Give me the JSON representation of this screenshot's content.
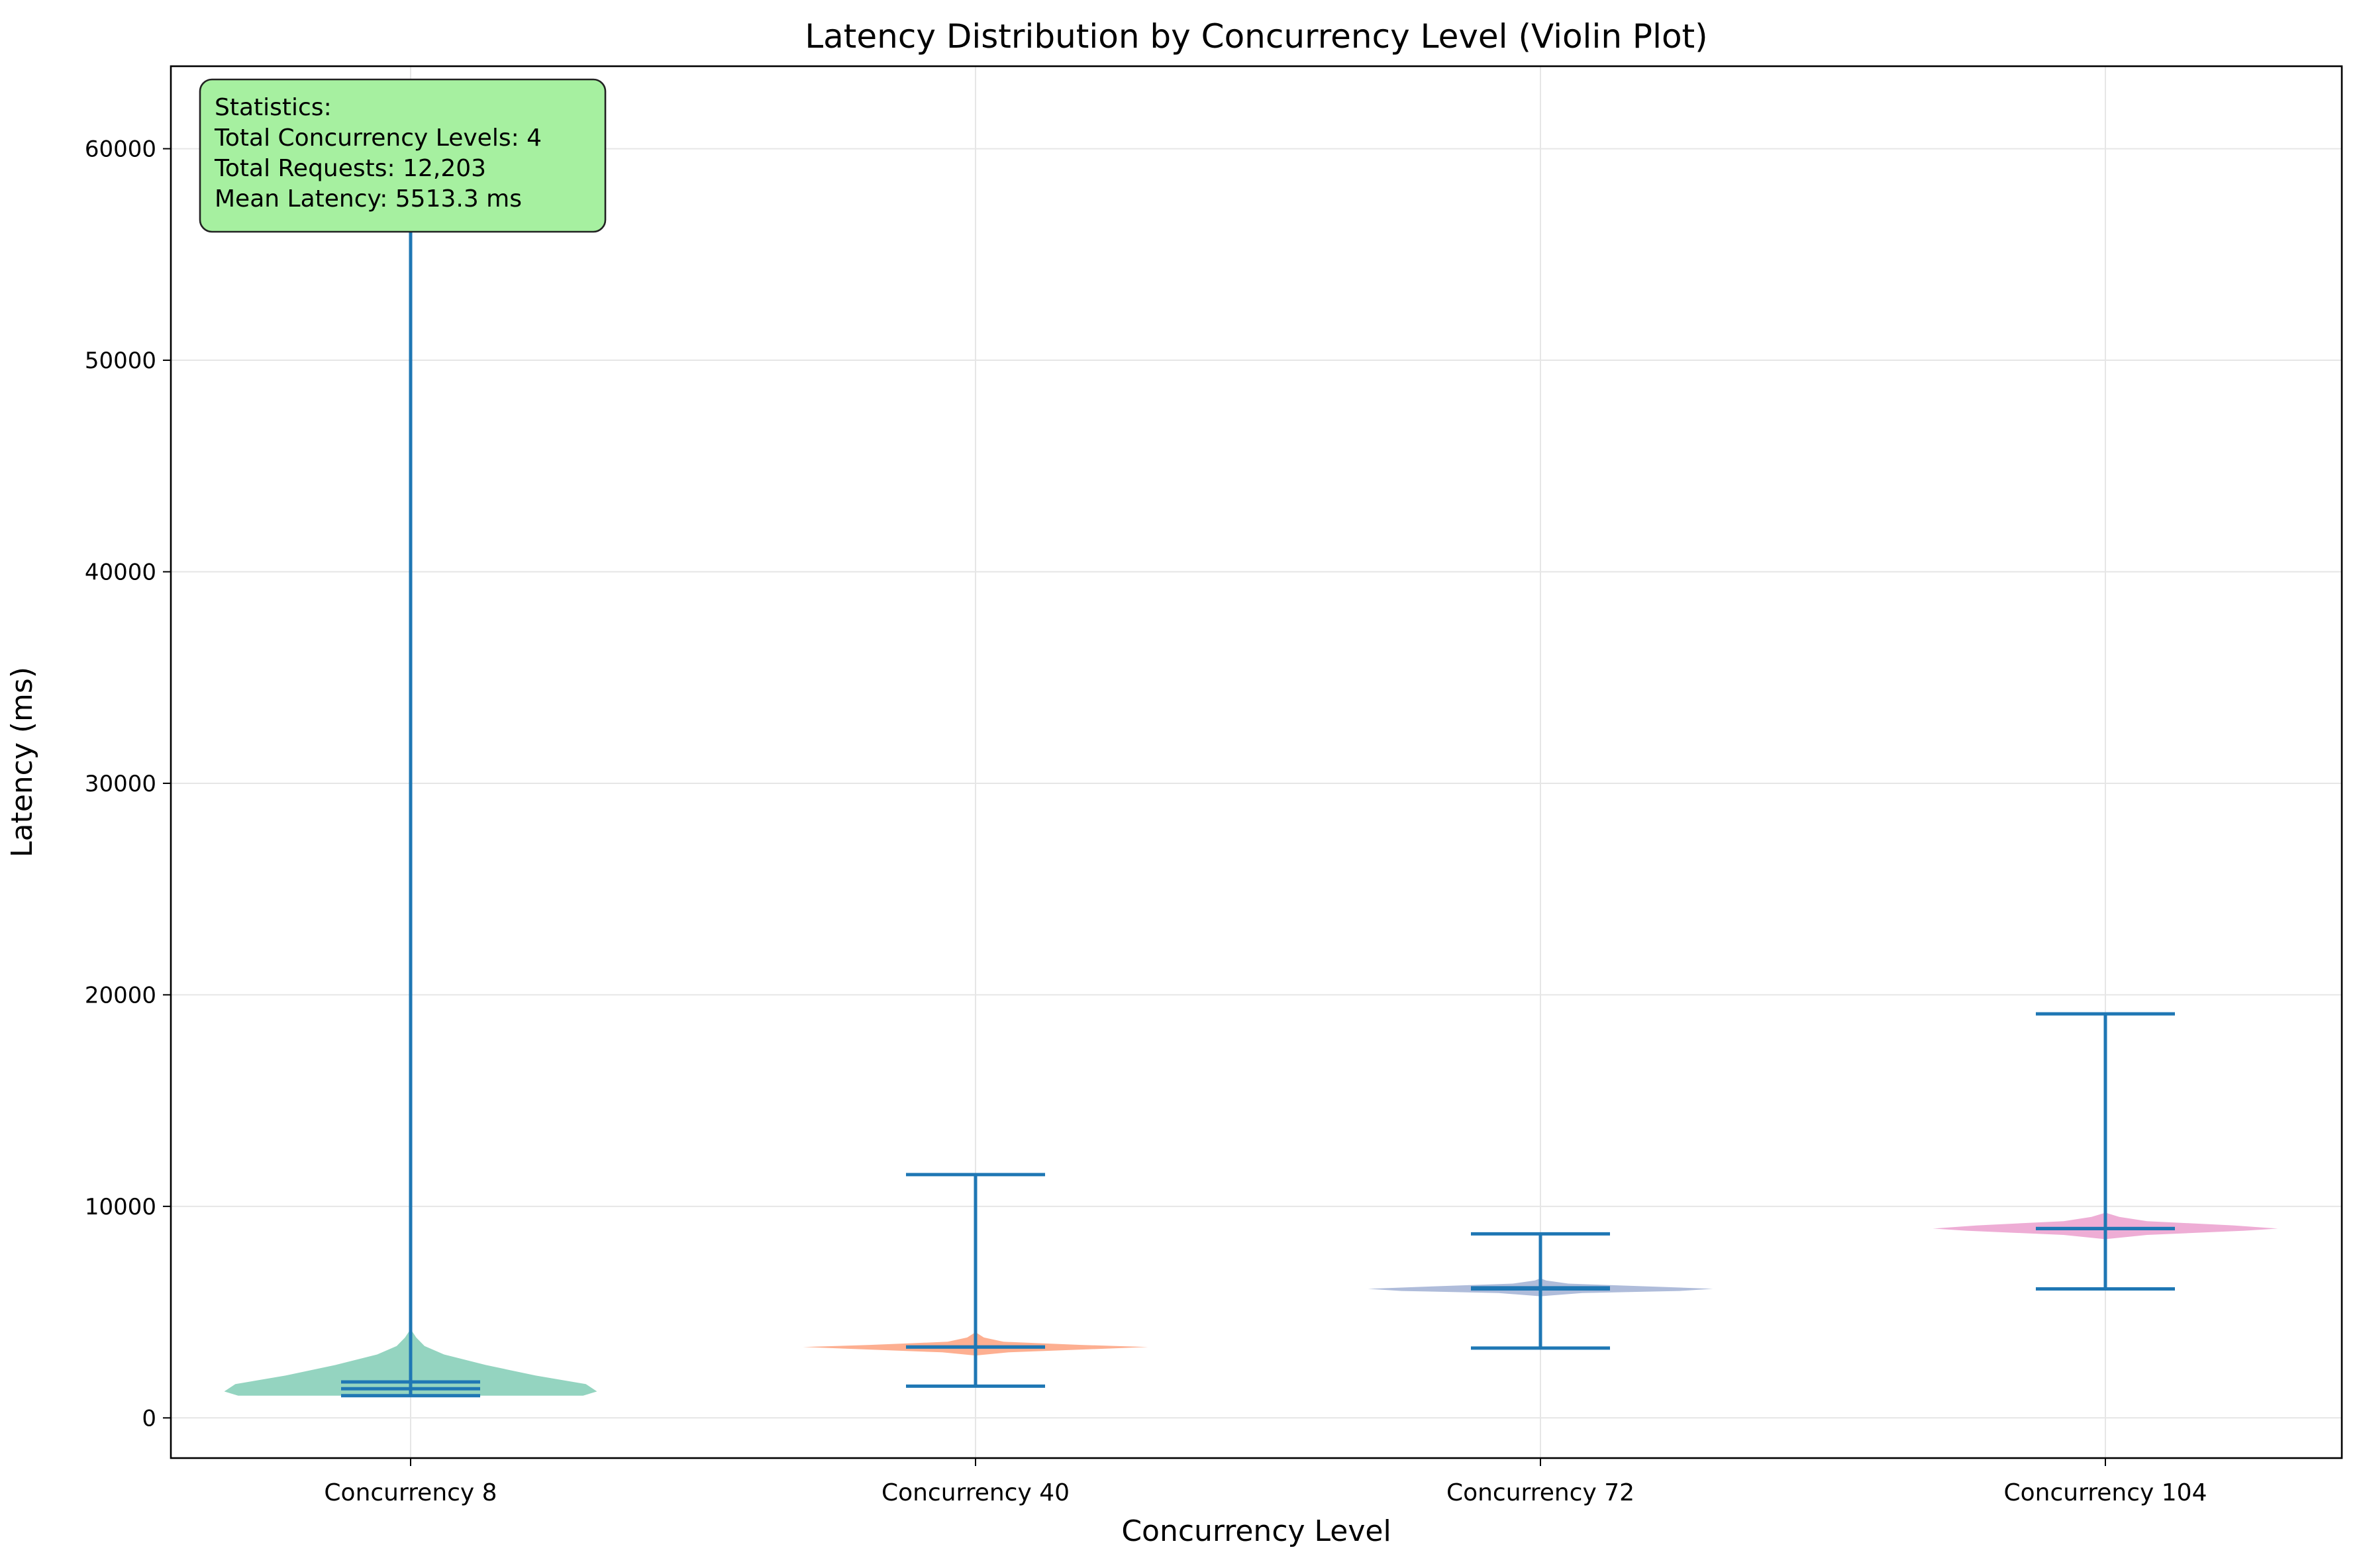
{
  "chart_data": {
    "type": "violin",
    "title": "Latency Distribution by Concurrency Level (Violin Plot)",
    "xlabel": "Concurrency Level",
    "ylabel": "Latency (ms)",
    "categories": [
      "Concurrency 8",
      "Concurrency 40",
      "Concurrency 72",
      "Concurrency 104"
    ],
    "ylim": [
      -1900,
      63900
    ],
    "yticks": [
      0,
      10000,
      20000,
      30000,
      40000,
      50000,
      60000
    ],
    "ytick_labels": [
      "0",
      "10000",
      "20000",
      "30000",
      "40000",
      "50000",
      "60000"
    ],
    "grid": true,
    "series": [
      {
        "category": "Concurrency 8",
        "color": "#66c2a5",
        "min": 1050,
        "max": 60800,
        "median": 1380,
        "mean": 1700,
        "profile": [
          [
            1050,
            0.62
          ],
          [
            1250,
            0.67
          ],
          [
            1600,
            0.63
          ],
          [
            2000,
            0.45
          ],
          [
            2500,
            0.27
          ],
          [
            3000,
            0.12
          ],
          [
            3400,
            0.05
          ],
          [
            3800,
            0.02
          ],
          [
            4200,
            0.0
          ]
        ]
      },
      {
        "category": "Concurrency 40",
        "color": "#fc8d62",
        "min": 1500,
        "max": 11500,
        "median": 3350,
        "mean": 3350,
        "profile": [
          [
            2950,
            0.0
          ],
          [
            3100,
            0.12
          ],
          [
            3250,
            0.42
          ],
          [
            3350,
            0.62
          ],
          [
            3450,
            0.38
          ],
          [
            3600,
            0.1
          ],
          [
            3800,
            0.03
          ],
          [
            4050,
            0.0
          ]
        ]
      },
      {
        "category": "Concurrency 72",
        "color": "#8da0cb",
        "min": 3300,
        "max": 8700,
        "median": 6100,
        "mean": 6150,
        "profile": [
          [
            5750,
            0.0
          ],
          [
            5900,
            0.15
          ],
          [
            6000,
            0.5
          ],
          [
            6100,
            0.62
          ],
          [
            6200,
            0.42
          ],
          [
            6350,
            0.1
          ],
          [
            6500,
            0.02
          ],
          [
            6600,
            0.0
          ]
        ]
      },
      {
        "category": "Concurrency 104",
        "color": "#e78ac3",
        "min": 6100,
        "max": 19100,
        "median": 8950,
        "mean": 8950,
        "profile": [
          [
            8450,
            0.0
          ],
          [
            8650,
            0.15
          ],
          [
            8850,
            0.5
          ],
          [
            8950,
            0.62
          ],
          [
            9100,
            0.46
          ],
          [
            9300,
            0.15
          ],
          [
            9500,
            0.05
          ],
          [
            9700,
            0.0
          ]
        ]
      }
    ],
    "stats_box": {
      "lines": [
        "Statistics:",
        "Total Concurrency Levels: 4",
        "Total Requests: 12,203",
        "Mean Latency: 5513.3 ms"
      ],
      "background": "#a6f0a0",
      "placement": "top-left"
    },
    "line_color": "#1f77b4"
  }
}
